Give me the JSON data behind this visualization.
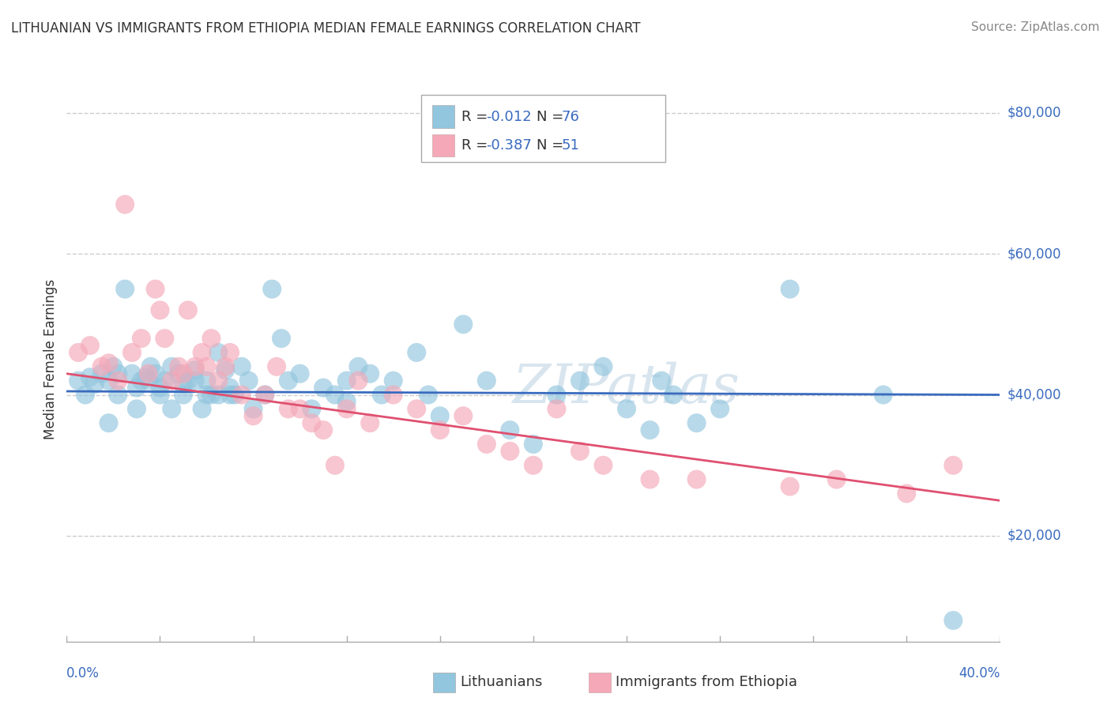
{
  "title": "LITHUANIAN VS IMMIGRANTS FROM ETHIOPIA MEDIAN FEMALE EARNINGS CORRELATION CHART",
  "source": "Source: ZipAtlas.com",
  "ylabel": "Median Female Earnings",
  "y_ticks": [
    20000,
    40000,
    60000,
    80000
  ],
  "y_tick_labels": [
    "$20,000",
    "$40,000",
    "$60,000",
    "$80,000"
  ],
  "x_min": 0.0,
  "x_max": 0.4,
  "y_min": 5000,
  "y_max": 85000,
  "series1_label": "Lithuanians",
  "series1_R": "-0.012",
  "series1_N": "76",
  "series1_color": "#92c5de",
  "series2_label": "Immigrants from Ethiopia",
  "series2_R": "-0.387",
  "series2_N": "51",
  "series2_color": "#f4a8b8",
  "trend1_color": "#3a6bbf",
  "trend2_color": "#e05070",
  "legend_num_color": "#3a6bbf",
  "background_color": "#ffffff",
  "grid_color": "#cccccc",
  "watermark_color": "#c8dae8",
  "axis_color": "#aaaaaa",
  "text_color": "#333333",
  "source_color": "#888888",
  "series1_x": [
    0.005,
    0.01,
    0.012,
    0.015,
    0.018,
    0.02,
    0.022,
    0.025,
    0.028,
    0.03,
    0.032,
    0.034,
    0.036,
    0.038,
    0.04,
    0.042,
    0.045,
    0.048,
    0.05,
    0.052,
    0.055,
    0.058,
    0.06,
    0.062,
    0.065,
    0.068,
    0.07,
    0.072,
    0.075,
    0.078,
    0.08,
    0.085,
    0.088,
    0.092,
    0.095,
    0.1,
    0.105,
    0.11,
    0.115,
    0.12,
    0.125,
    0.13,
    0.135,
    0.14,
    0.15,
    0.155,
    0.16,
    0.17,
    0.18,
    0.19,
    0.2,
    0.21,
    0.22,
    0.23,
    0.24,
    0.25,
    0.255,
    0.26,
    0.27,
    0.28,
    0.008,
    0.018,
    0.022,
    0.03,
    0.035,
    0.04,
    0.045,
    0.05,
    0.055,
    0.06,
    0.065,
    0.07,
    0.12,
    0.31,
    0.35,
    0.38
  ],
  "series1_y": [
    42000,
    42500,
    41500,
    43000,
    42000,
    44000,
    43000,
    55000,
    43000,
    41000,
    42000,
    42500,
    44000,
    43000,
    41000,
    42000,
    44000,
    43000,
    41500,
    42000,
    43500,
    38000,
    42000,
    40000,
    46000,
    43500,
    41000,
    40000,
    44000,
    42000,
    38000,
    40000,
    55000,
    48000,
    42000,
    43000,
    38000,
    41000,
    40000,
    39000,
    44000,
    43000,
    40000,
    42000,
    46000,
    40000,
    37000,
    50000,
    42000,
    35000,
    33000,
    40000,
    42000,
    44000,
    38000,
    35000,
    42000,
    40000,
    36000,
    38000,
    40000,
    36000,
    40000,
    38000,
    42000,
    40000,
    38000,
    40000,
    42000,
    40000,
    40000,
    40000,
    42000,
    55000,
    40000,
    8000
  ],
  "series2_x": [
    0.005,
    0.01,
    0.015,
    0.018,
    0.022,
    0.025,
    0.028,
    0.032,
    0.035,
    0.038,
    0.04,
    0.042,
    0.045,
    0.048,
    0.05,
    0.052,
    0.055,
    0.058,
    0.06,
    0.062,
    0.065,
    0.068,
    0.07,
    0.075,
    0.08,
    0.085,
    0.09,
    0.095,
    0.1,
    0.105,
    0.11,
    0.115,
    0.12,
    0.125,
    0.13,
    0.14,
    0.15,
    0.16,
    0.17,
    0.18,
    0.19,
    0.2,
    0.21,
    0.22,
    0.23,
    0.25,
    0.27,
    0.31,
    0.33,
    0.36,
    0.38
  ],
  "series2_y": [
    46000,
    47000,
    44000,
    44500,
    42000,
    67000,
    46000,
    48000,
    43000,
    55000,
    52000,
    48000,
    42000,
    44000,
    43000,
    52000,
    44000,
    46000,
    44000,
    48000,
    42000,
    44000,
    46000,
    40000,
    37000,
    40000,
    44000,
    38000,
    38000,
    36000,
    35000,
    30000,
    38000,
    42000,
    36000,
    40000,
    38000,
    35000,
    37000,
    33000,
    32000,
    30000,
    38000,
    32000,
    30000,
    28000,
    28000,
    27000,
    28000,
    26000,
    30000
  ]
}
